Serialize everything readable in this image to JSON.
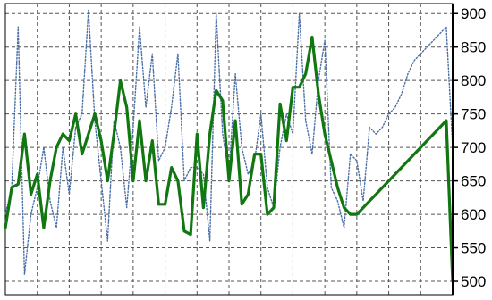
{
  "chart_data": {
    "type": "line",
    "title": "",
    "xlabel": "",
    "ylabel": "",
    "y_axis_side": "right",
    "grid": true,
    "ylim": [
      480,
      915
    ],
    "y_ticks": [
      500,
      550,
      600,
      650,
      700,
      750,
      800,
      850,
      900
    ],
    "x": [
      0,
      1,
      2,
      3,
      4,
      5,
      6,
      7,
      8,
      9,
      10,
      11,
      12,
      13,
      14,
      15,
      16,
      17,
      18,
      19,
      20,
      21,
      22,
      23,
      24,
      25,
      26,
      27,
      28,
      29,
      30,
      31,
      32,
      33,
      34,
      35,
      36,
      37,
      38,
      39,
      40,
      41,
      42,
      43,
      44,
      45,
      46,
      47,
      48,
      49,
      50,
      51,
      52,
      53,
      54,
      55,
      56,
      57,
      58,
      59,
      60,
      61,
      62,
      63,
      64,
      65,
      66,
      67,
      68,
      69,
      70
    ],
    "series": [
      {
        "color": "#4a6fa5",
        "style": "dotted",
        "values": [
          600,
          640,
          880,
          510,
          600,
          640,
          700,
          620,
          580,
          700,
          630,
          730,
          750,
          905,
          740,
          650,
          560,
          740,
          700,
          610,
          730,
          880,
          760,
          840,
          680,
          700,
          760,
          840,
          650,
          670,
          670,
          660,
          560,
          900,
          720,
          660,
          810,
          700,
          660,
          680,
          750,
          640,
          610,
          700,
          750,
          720,
          900,
          740,
          690,
          800,
          860,
          640,
          620,
          580,
          690,
          680,
          620,
          730,
          720,
          730,
          750,
          760,
          780,
          810,
          830,
          840,
          850,
          860,
          870,
          880,
          700
        ]
      },
      {
        "color": "#117711",
        "style": "solid",
        "values": [
          580,
          640,
          645,
          720,
          630,
          660,
          580,
          650,
          700,
          720,
          710,
          750,
          690,
          720,
          750,
          710,
          650,
          720,
          800,
          760,
          650,
          740,
          650,
          710,
          615,
          615,
          670,
          650,
          575,
          570,
          720,
          610,
          720,
          785,
          770,
          650,
          740,
          615,
          630,
          690,
          690,
          600,
          610,
          765,
          710,
          790,
          790,
          810,
          865,
          780,
          720,
          680,
          640,
          610,
          600,
          600,
          610,
          620,
          630,
          640,
          650,
          660,
          670,
          680,
          690,
          700,
          710,
          720,
          730,
          740,
          500
        ]
      }
    ]
  }
}
